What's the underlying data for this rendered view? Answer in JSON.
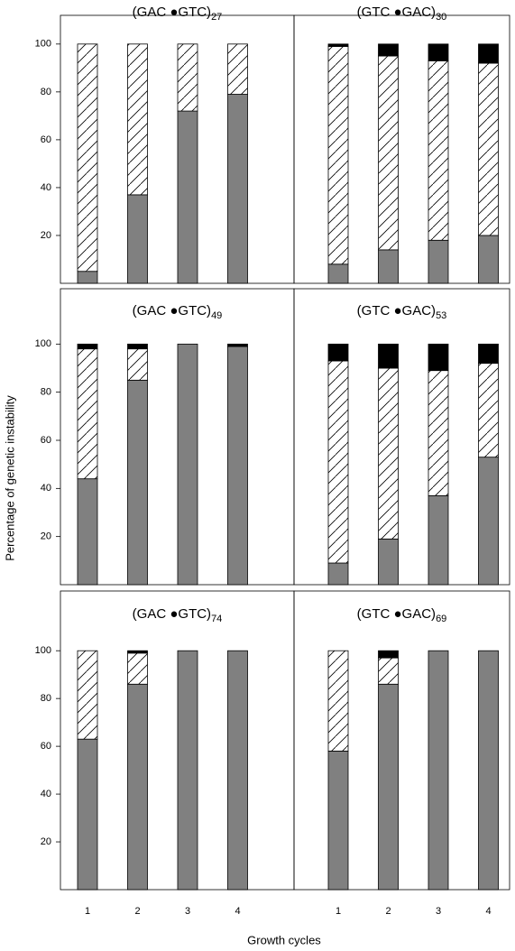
{
  "y_label": "Percentage of genetic instability",
  "x_label": "Growth cycles",
  "chart_data": [
    {
      "type": "bar",
      "stacked": true,
      "title": "(GAC ●GTC)",
      "title_sub": "27",
      "categories": [
        null,
        null,
        null,
        null
      ],
      "series": [
        {
          "color": "#808080",
          "values": [
            5,
            37,
            72,
            79
          ]
        },
        {
          "color": "#ffffff",
          "hatch": true,
          "values": [
            95,
            63,
            28,
            21
          ]
        }
      ],
      "ylim": [
        0,
        112
      ],
      "yticks": [
        20,
        40,
        60,
        80,
        100
      ]
    },
    {
      "type": "bar",
      "stacked": true,
      "title": "(GTC ●GAC)",
      "title_sub": "30",
      "categories": [
        null,
        null,
        null,
        null
      ],
      "series": [
        {
          "color": "#808080",
          "values": [
            8,
            14,
            18,
            20
          ]
        },
        {
          "color": "#ffffff",
          "hatch": true,
          "values": [
            91,
            81,
            75,
            72
          ]
        },
        {
          "color": "#000000",
          "values": [
            1,
            5,
            7,
            8
          ]
        }
      ],
      "ylim": [
        0,
        112
      ]
    },
    {
      "type": "bar",
      "stacked": true,
      "title": "(GAC ●GTC)",
      "title_sub": "49",
      "categories": [
        null,
        null,
        null,
        null
      ],
      "series": [
        {
          "color": "#808080",
          "values": [
            44,
            85,
            100,
            99
          ]
        },
        {
          "color": "#ffffff",
          "hatch": true,
          "values": [
            54,
            13,
            0,
            0
          ]
        },
        {
          "color": "#000000",
          "values": [
            2,
            2,
            0,
            1
          ]
        }
      ],
      "ylim": [
        0,
        123
      ],
      "yticks": [
        20,
        40,
        60,
        80,
        100
      ]
    },
    {
      "type": "bar",
      "stacked": true,
      "title": "(GTC ●GAC)",
      "title_sub": "53",
      "categories": [
        null,
        null,
        null,
        null
      ],
      "series": [
        {
          "color": "#808080",
          "values": [
            9,
            19,
            37,
            53
          ]
        },
        {
          "color": "#ffffff",
          "hatch": true,
          "values": [
            84,
            71,
            52,
            39
          ]
        },
        {
          "color": "#000000",
          "values": [
            7,
            10,
            11,
            8
          ]
        }
      ],
      "ylim": [
        0,
        123
      ]
    },
    {
      "type": "bar",
      "stacked": true,
      "title": "(GAC ●GTC)",
      "title_sub": "74",
      "categories": [
        "1",
        "2",
        "3",
        "4"
      ],
      "series": [
        {
          "color": "#808080",
          "values": [
            63,
            86,
            100,
            100
          ]
        },
        {
          "color": "#ffffff",
          "hatch": true,
          "values": [
            37,
            13,
            0,
            0
          ]
        },
        {
          "color": "#000000",
          "values": [
            0,
            1,
            0,
            0
          ]
        }
      ],
      "ylim": [
        0,
        125
      ],
      "yticks": [
        20,
        40,
        60,
        80,
        100
      ]
    },
    {
      "type": "bar",
      "stacked": true,
      "title": "(GTC ●GAC)",
      "title_sub": "69",
      "categories": [
        "1",
        "2",
        "3",
        "4"
      ],
      "series": [
        {
          "color": "#808080",
          "values": [
            58,
            86,
            100,
            100
          ]
        },
        {
          "color": "#ffffff",
          "hatch": true,
          "values": [
            42,
            11,
            0,
            0
          ]
        },
        {
          "color": "#000000",
          "values": [
            0,
            3,
            0,
            0
          ]
        }
      ],
      "ylim": [
        0,
        125
      ]
    }
  ]
}
